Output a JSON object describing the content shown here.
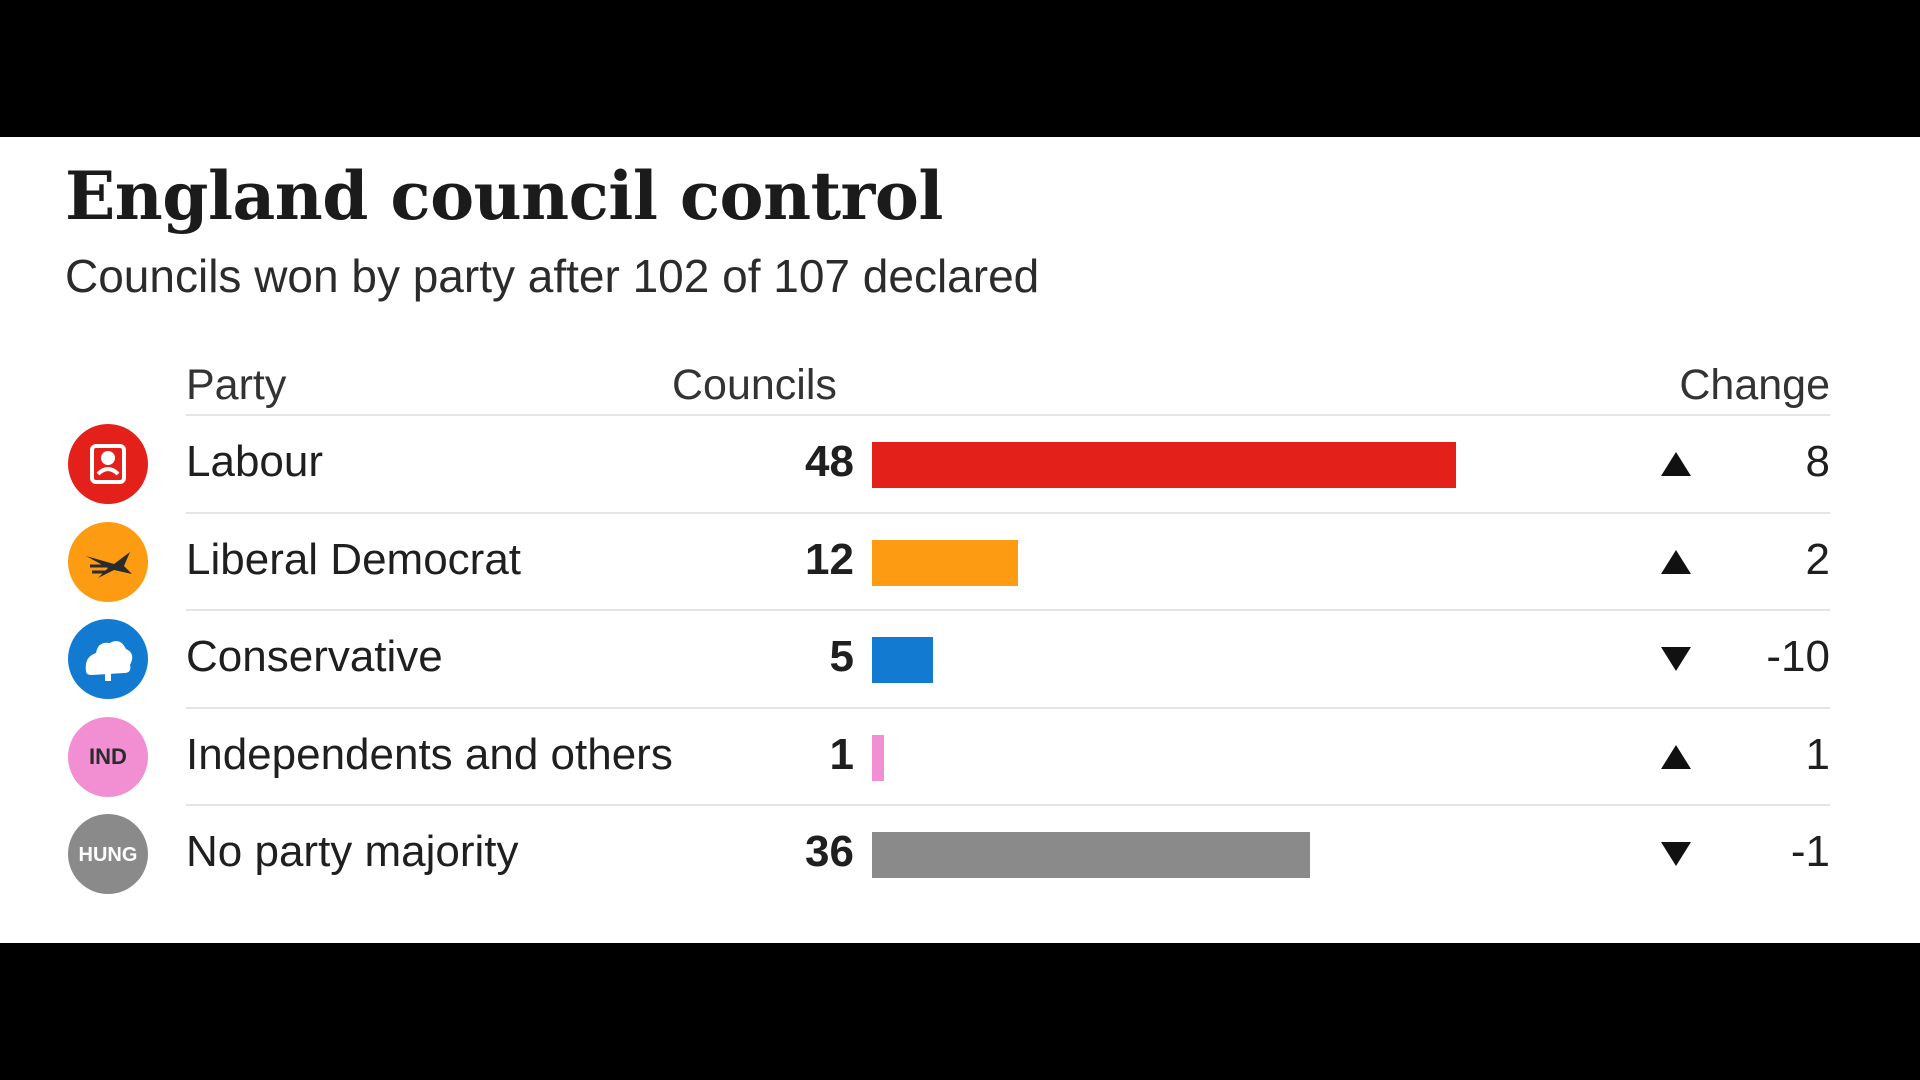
{
  "chart_data": {
    "type": "bar",
    "orientation": "horizontal",
    "title": "England council control",
    "subtitle": "Councils won by party after 102 of 107 declared",
    "columns": {
      "party": "Party",
      "councils": "Councils",
      "change": "Change"
    },
    "categories": [
      "Labour",
      "Liberal Democrat",
      "Conservative",
      "Independents and others",
      "No party majority"
    ],
    "values": [
      48,
      12,
      5,
      1,
      36
    ],
    "changes": [
      8,
      2,
      -10,
      1,
      -1
    ],
    "change_labels": [
      "8",
      "2",
      "-10",
      "1",
      "-1"
    ],
    "change_direction": [
      "up",
      "up",
      "down",
      "up",
      "down"
    ],
    "colors": [
      "#e4201b",
      "#fd9c13",
      "#137ad1",
      "#f28fd2",
      "#8a8a8a"
    ],
    "logos": [
      {
        "icon": "labour-rose-icon",
        "text": ""
      },
      {
        "icon": "libdem-bird-icon",
        "text": ""
      },
      {
        "icon": "conservative-tree-icon",
        "text": ""
      },
      {
        "icon": "independent-badge-icon",
        "text": "IND"
      },
      {
        "icon": "hung-badge-icon",
        "text": "HUNG"
      }
    ],
    "xlim": [
      0,
      48
    ],
    "grid": false,
    "legend": "none"
  }
}
